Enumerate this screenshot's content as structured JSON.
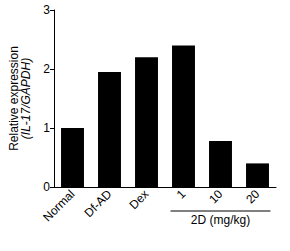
{
  "chart_data": {
    "type": "bar",
    "y_label": "Relative expression (IL-17/GAPDH)",
    "categories": [
      "Normal",
      "Df-AD",
      "Dex",
      "1",
      "10",
      "20"
    ],
    "values": [
      1.0,
      1.95,
      2.2,
      2.4,
      0.78,
      0.4
    ],
    "color": "#000000",
    "ylim": [
      0,
      3
    ],
    "yticks": [
      0,
      1,
      2,
      3
    ],
    "grid": false,
    "annotations": [
      {
        "text": "2D (mg/kg)",
        "categories": [
          "1",
          "10",
          "20"
        ]
      }
    ]
  }
}
